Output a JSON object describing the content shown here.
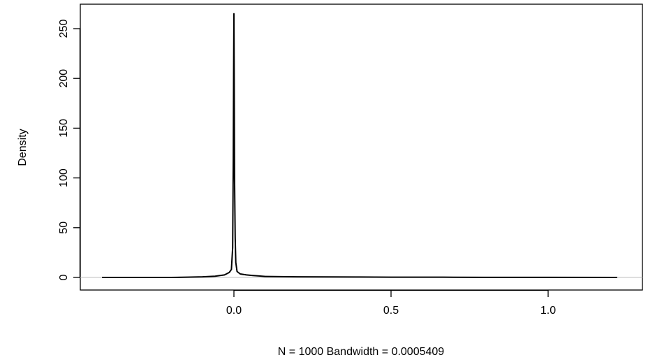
{
  "chart_data": {
    "type": "line",
    "title": "",
    "xlabel": "N = 1000   Bandwidth = 0.0005409",
    "ylabel": "Density",
    "xlim": [
      -0.5,
      1.3
    ],
    "ylim": [
      -15,
      278
    ],
    "x_ticks": [
      {
        "value": 0.0,
        "label": "0.0"
      },
      {
        "value": 0.5,
        "label": "0.5"
      },
      {
        "value": 1.0,
        "label": "1.0"
      }
    ],
    "y_ticks": [
      {
        "value": 0,
        "label": "0"
      },
      {
        "value": 50,
        "label": "50"
      },
      {
        "value": 100,
        "label": "100"
      },
      {
        "value": 150,
        "label": "150"
      },
      {
        "value": 200,
        "label": "200"
      },
      {
        "value": 250,
        "label": "250"
      }
    ],
    "baseline": 0,
    "colors": {
      "line": "#000000",
      "baseline": "#bebebe",
      "frame": "#000000"
    },
    "series": [
      {
        "x": [
          -0.42,
          -0.3,
          -0.2,
          -0.15,
          -0.1,
          -0.06,
          -0.03,
          -0.015,
          -0.008,
          -0.004,
          -0.002,
          -0.001,
          0.0,
          0.001,
          0.002,
          0.004,
          0.006,
          0.01,
          0.02,
          0.04,
          0.06,
          0.08,
          0.1,
          0.15,
          0.2,
          0.3,
          0.4,
          0.5,
          0.6,
          0.7,
          0.8,
          1.0,
          1.22
        ],
        "y": [
          0,
          0,
          0,
          0.3,
          0.6,
          1.2,
          2.5,
          5,
          8,
          30,
          120,
          210,
          265,
          200,
          100,
          40,
          15,
          6,
          3.5,
          2.5,
          2,
          1.5,
          1,
          0.8,
          0.6,
          0.5,
          0.4,
          0.3,
          0.3,
          0.2,
          0.1,
          0.05,
          0
        ]
      }
    ]
  }
}
